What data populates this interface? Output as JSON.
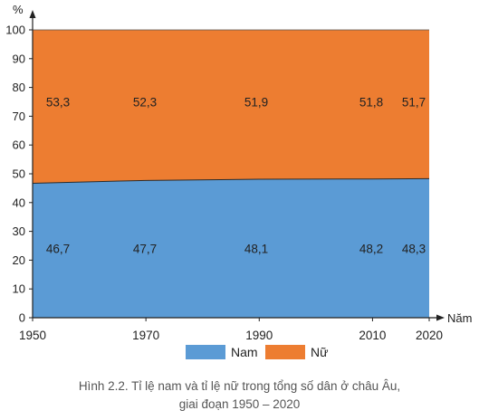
{
  "chart_data": {
    "type": "area",
    "stacked": true,
    "x": [
      1950,
      1970,
      1990,
      2010,
      2020
    ],
    "series": [
      {
        "name": "Nam",
        "values": [
          46.7,
          47.7,
          48.1,
          48.2,
          48.3
        ],
        "color": "#5b9bd5"
      },
      {
        "name": "Nữ",
        "values": [
          53.3,
          52.3,
          51.9,
          51.8,
          51.7
        ],
        "color": "#ed7d31"
      }
    ],
    "ylabel": "%",
    "xlabel": "Năm",
    "ylim": [
      0,
      100
    ],
    "yticks": [
      0,
      10,
      20,
      30,
      40,
      50,
      60,
      70,
      80,
      90,
      100
    ],
    "ytick_labels": [
      "0",
      "10",
      "20",
      "30",
      "40",
      "50",
      "60",
      "70",
      "80",
      "90",
      "100"
    ],
    "xtick_labels": [
      "1950",
      "1970",
      "1990",
      "2010",
      "2020"
    ],
    "data_labels": {
      "Nam": [
        "46,7",
        "47,7",
        "48,1",
        "48,2",
        "48,3"
      ],
      "Nữ": [
        "53,3",
        "52,3",
        "51,9",
        "51,8",
        "51,7"
      ]
    },
    "legend": {
      "position": "bottom",
      "items": [
        "Nam",
        "Nữ"
      ]
    },
    "grid": false
  },
  "caption": {
    "line1": "Hình 2.2. Tỉ lệ nam và tỉ lệ nữ trong tổng số dân ở châu Âu,",
    "line2": "giai đoạn 1950 – 2020"
  }
}
